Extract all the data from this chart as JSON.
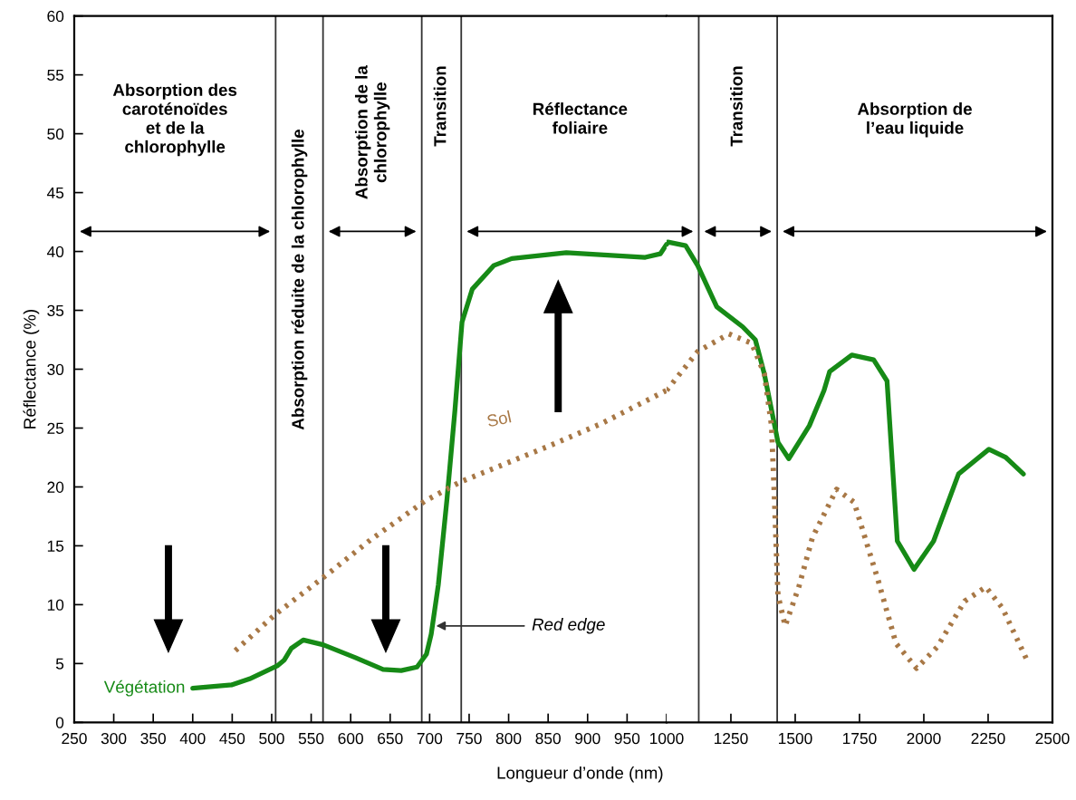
{
  "chart_data": [
    {
      "type": "line",
      "xlabel": "Longueur d’onde (nm)",
      "ylabel": "Réflectance (%)",
      "xlim": [
        250,
        1000
      ],
      "xticks": [
        250,
        300,
        350,
        400,
        450,
        500,
        550,
        600,
        650,
        700,
        750,
        800,
        850,
        900,
        950,
        1000
      ],
      "ylim": [
        0,
        60
      ],
      "yticks": [
        0,
        5,
        10,
        15,
        20,
        25,
        30,
        35,
        40,
        45,
        50,
        55,
        60
      ],
      "grid": false,
      "legend": false,
      "series": [
        {
          "name": "Végétation",
          "color": "#168a16",
          "line_style": "solid",
          "x": [
            400,
            450,
            472,
            507,
            516,
            525,
            540,
            565,
            606,
            641,
            664,
            684,
            696,
            702,
            711,
            722,
            732,
            741,
            754,
            781,
            804,
            873,
            973,
            992,
            1000
          ],
          "values": [
            2.9,
            3.2,
            3.7,
            4.8,
            5.3,
            6.3,
            7.0,
            6.6,
            5.5,
            4.5,
            4.4,
            4.7,
            5.8,
            7.5,
            11.7,
            19,
            26.5,
            34,
            36.8,
            38.8,
            39.4,
            39.9,
            39.5,
            39.8,
            40.6
          ]
        },
        {
          "name": "Sol",
          "color": "#a87846",
          "line_style": "dotted",
          "x": [
            454,
            505,
            569,
            625,
            694,
            738,
            852,
            918,
            1000
          ],
          "values": [
            6.1,
            9.2,
            12.5,
            15.5,
            18.8,
            20.4,
            23.5,
            25.4,
            28.2
          ]
        }
      ],
      "ref_lines": [
        {
          "axis": "x",
          "value": 505,
          "color": "#333333"
        },
        {
          "axis": "x",
          "value": 565,
          "color": "#333333"
        },
        {
          "axis": "x",
          "value": 690,
          "color": "#333333"
        },
        {
          "axis": "x",
          "value": 740,
          "color": "#333333"
        }
      ],
      "annotations": [
        "Absorption des\ncaroténoïdes\net de la\nchlorophylle",
        "Absorption réduite de la chlorophylle",
        "Absorption de la\nchlorophylle",
        "Transition",
        "Réflectance\nfoliaire",
        {
          "text": "Red edge",
          "x": 705,
          "y": 8.2
        }
      ]
    },
    {
      "type": "line",
      "xlim": [
        1000,
        2500
      ],
      "xticks": [
        1250,
        1500,
        1750,
        2000,
        2250,
        2500
      ],
      "ylim": [
        0,
        60
      ],
      "tick_labels": "x",
      "grid": false,
      "legend": false,
      "series": [
        {
          "color": "#168a16",
          "line_style": "solid",
          "x": [
            1000,
            1005,
            1074,
            1121,
            1195,
            1296,
            1345,
            1380,
            1433,
            1475,
            1555,
            1612,
            1634,
            1720,
            1805,
            1857,
            1897,
            1962,
            2038,
            2135,
            2253,
            2319,
            2387
          ],
          "values": [
            40.6,
            40.8,
            40.5,
            38.8,
            35.3,
            33.6,
            32.5,
            29.6,
            23.8,
            22.4,
            25.2,
            28.2,
            29.8,
            31.2,
            30.8,
            29,
            15.4,
            13.0,
            15.4,
            21.1,
            23.2,
            22.5,
            21.1
          ]
        },
        {
          "color": "#a87846",
          "line_style": "dotted",
          "x": [
            1000,
            1121,
            1242,
            1331,
            1380,
            1408,
            1419,
            1433,
            1461,
            1514,
            1567,
            1661,
            1729,
            1822,
            1892,
            1972,
            2052,
            2159,
            2241,
            2306,
            2403
          ],
          "values": [
            28.2,
            31.5,
            33,
            32.2,
            29.6,
            25.2,
            19.2,
            10.8,
            8.2,
            11.5,
            15.7,
            19.8,
            18.7,
            12.1,
            6.7,
            4.6,
            6.4,
            10.3,
            11.5,
            9.7,
            5.2
          ]
        }
      ],
      "ref_lines": [
        {
          "axis": "x",
          "value": 1125,
          "color": "#333333"
        },
        {
          "axis": "x",
          "value": 1430,
          "color": "#333333"
        }
      ],
      "annotations": [
        "Transition",
        "Absorption de\nl’eau liquide"
      ]
    }
  ]
}
